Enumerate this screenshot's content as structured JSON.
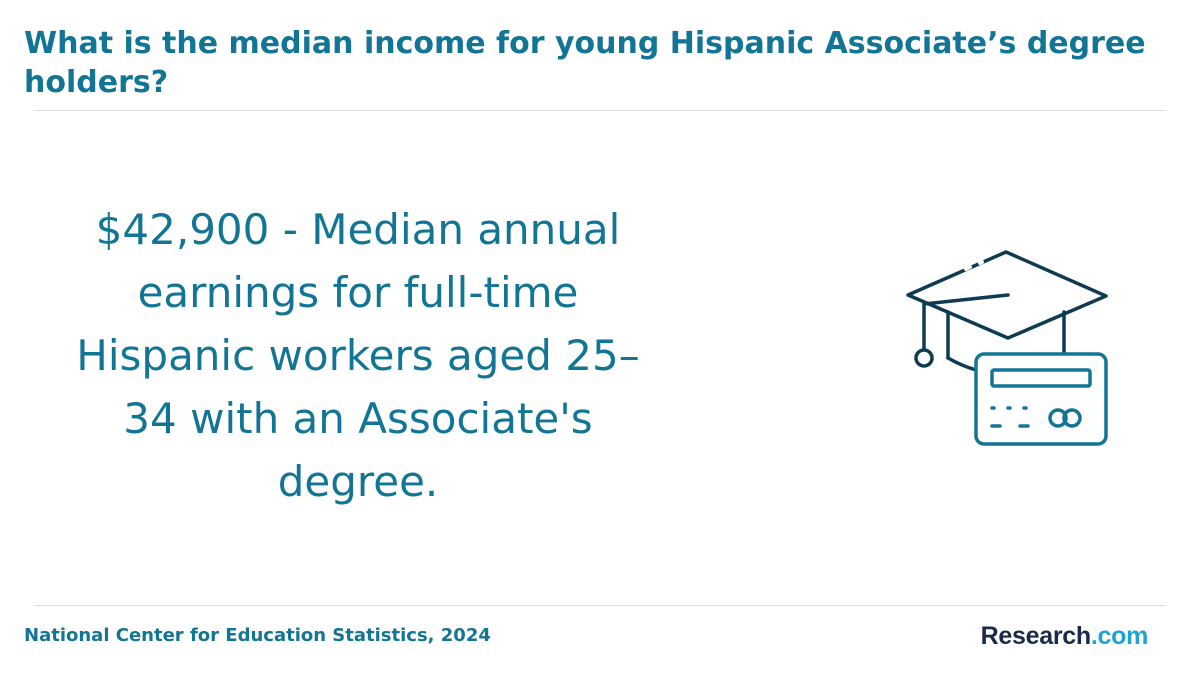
{
  "header": {
    "title": "What is the median income for young Hispanic Associate’s degree holders?"
  },
  "main": {
    "stat_text": "$42,900 - Median annual earnings for full-time Hispanic workers aged 25–34 with an Associate's degree.",
    "illustration_icon": "graduation-cap-with-credit-card-icon"
  },
  "footer": {
    "source": "National Center for Education Statistics, 2024",
    "brand_name": "Research",
    "brand_tld": ".com"
  },
  "colors": {
    "title": "#137596",
    "icon_dark": "#0f3b52",
    "icon_teal": "#137596",
    "brand_dark": "#1b2a4a",
    "brand_accent": "#1fa3d6"
  }
}
